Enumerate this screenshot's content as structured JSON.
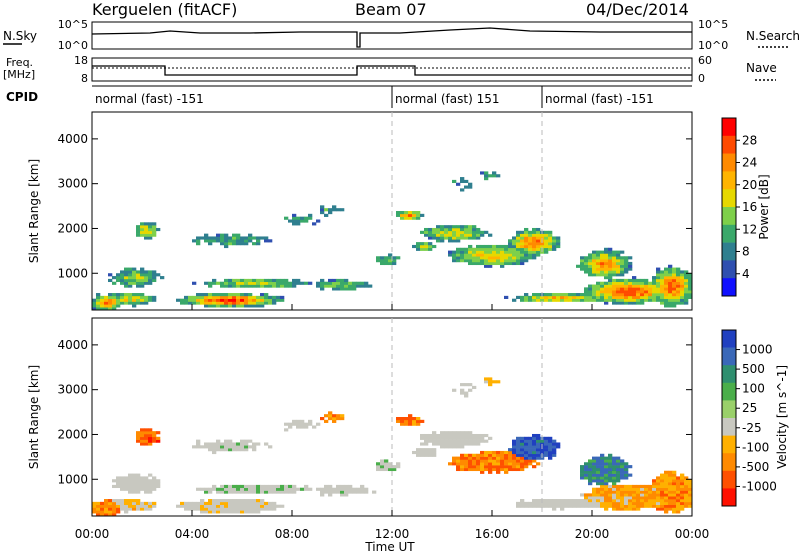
{
  "header": {
    "station": "Kerguelen (fitACF)",
    "beam": "Beam 07",
    "date": "04/Dec/2014"
  },
  "top_panels": {
    "nsky_label": "N.Sky",
    "nsearch_label": "N.Search",
    "nsky_ticks": [
      "10^5",
      "10^0"
    ],
    "nsearch_ticks": [
      "10^5",
      "10^0"
    ],
    "freq_label_1": "Freq.",
    "freq_label_2": "[MHz]",
    "freq_ticks": [
      "18",
      "8"
    ],
    "nave_label": "Nave",
    "nave_ticks": [
      "60",
      "0"
    ],
    "cpid_label": "CPID",
    "cpid_segments": [
      {
        "label": "normal (fast) -151",
        "start_h": 0,
        "end_h": 12
      },
      {
        "label": "normal (fast) 151",
        "start_h": 12,
        "end_h": 18
      },
      {
        "label": "normal (fast) -151",
        "start_h": 18,
        "end_h": 24
      }
    ]
  },
  "chart_data": [
    {
      "type": "heatmap",
      "name": "power",
      "ylabel": "Slant Range [km]",
      "xlabel": "Time UT",
      "x_range_hours": [
        0,
        24
      ],
      "ylim": [
        180,
        4600
      ],
      "y_ticks": [
        "1000",
        "2000",
        "3000",
        "4000"
      ],
      "x_ticks": [
        "00:00",
        "04:00",
        "08:00",
        "12:00",
        "16:00",
        "20:00",
        "00:00"
      ],
      "colorbar": {
        "label": "Power [dB]",
        "ticks": [
          "28",
          "24",
          "20",
          "16",
          "12",
          "8",
          "4"
        ],
        "colors": [
          "#ff0000",
          "#ff4a00",
          "#ff8a00",
          "#ffb400",
          "#e6d800",
          "#7ed04a",
          "#3aa86a",
          "#2f7f8f",
          "#2f4fb0",
          "#1010ff"
        ]
      }
    },
    {
      "type": "heatmap",
      "name": "velocity",
      "ylabel": "Slant Range [km]",
      "xlabel": "Time UT",
      "x_range_hours": [
        0,
        24
      ],
      "ylim": [
        180,
        4600
      ],
      "y_ticks": [
        "1000",
        "2000",
        "3000",
        "4000"
      ],
      "x_ticks": [
        "00:00",
        "04:00",
        "08:00",
        "12:00",
        "16:00",
        "20:00",
        "00:00"
      ],
      "colorbar": {
        "label": "Velocity [m s^-1]",
        "ticks": [
          "1000",
          "500",
          "100",
          "25",
          "-25",
          "-100",
          "-500",
          "-1000"
        ],
        "colors": [
          "#2040c0",
          "#3a68b8",
          "#2f8f6f",
          "#4aae4a",
          "#9ad06a",
          "#c8c8c0",
          "#ffb000",
          "#ff8a00",
          "#ff5000",
          "#ff1000"
        ]
      }
    }
  ],
  "xaxis_title": "Time UT"
}
